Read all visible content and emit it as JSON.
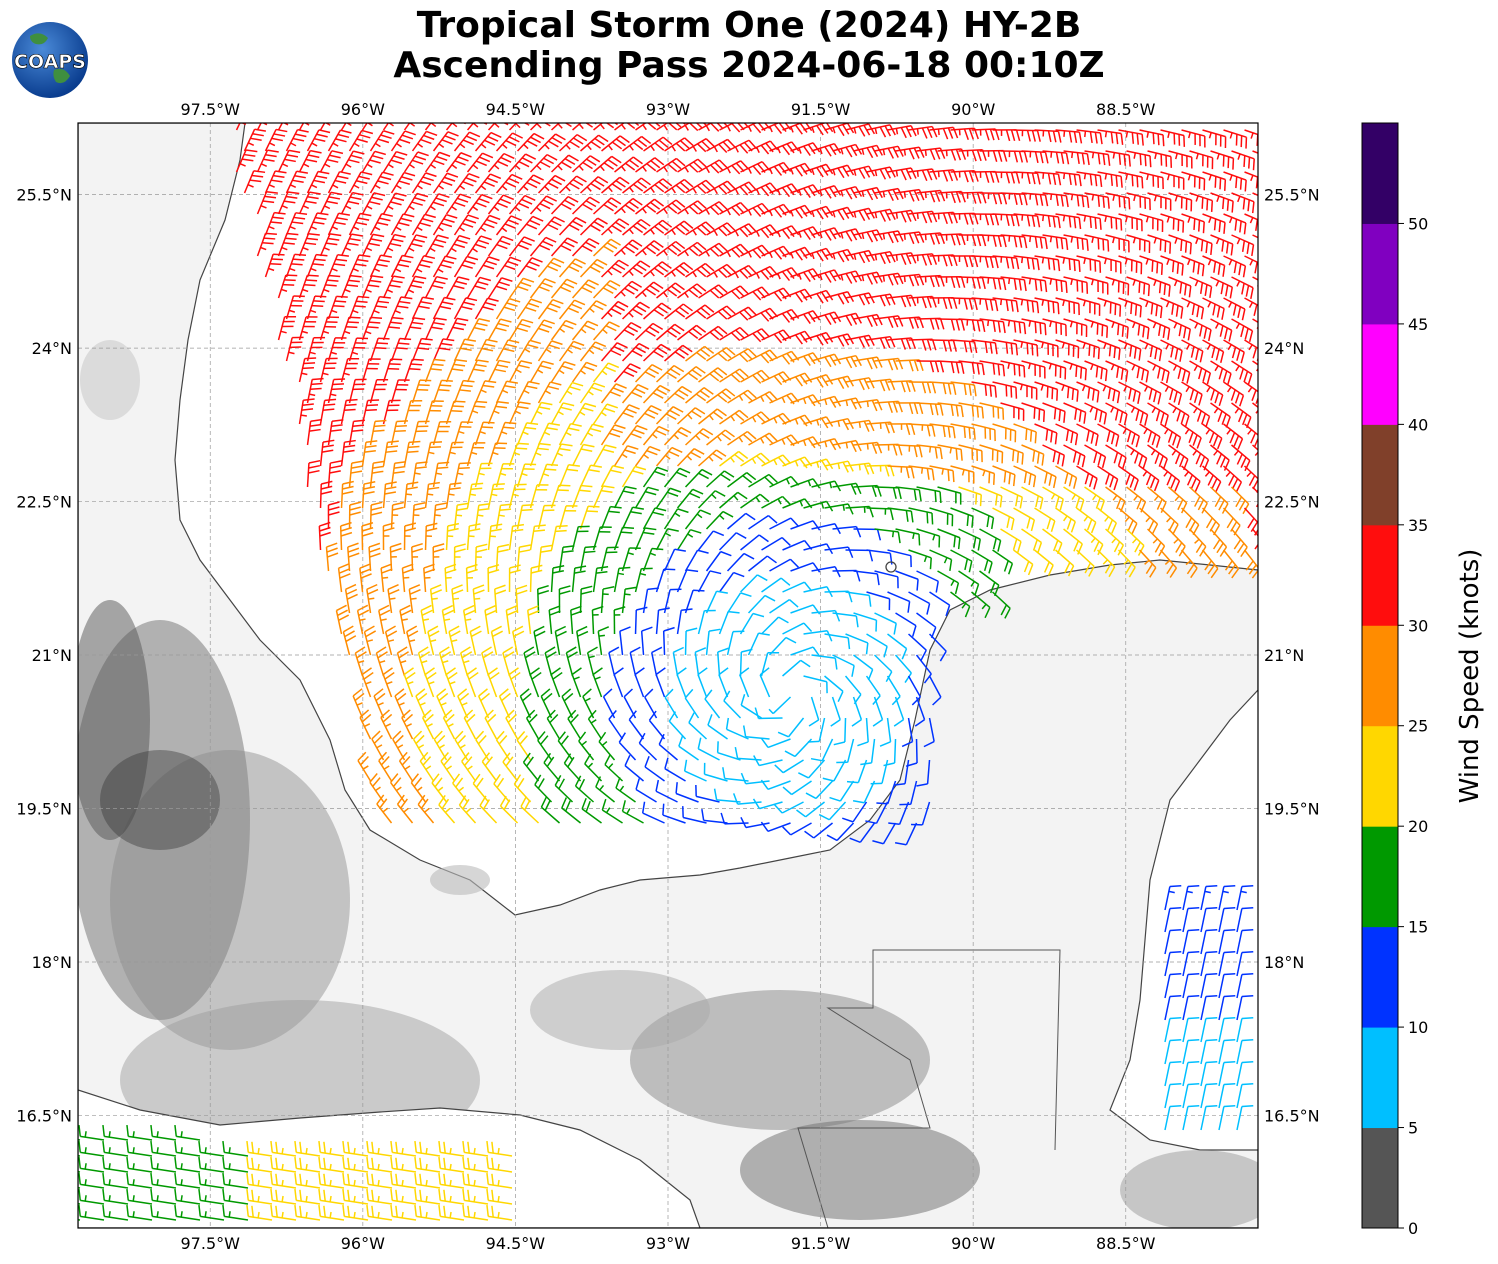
{
  "title": {
    "line1": "Tropical Storm One (2024) HY-2B",
    "line2": "Ascending Pass 2024-06-18 00:10Z"
  },
  "logo": {
    "text": "COAPS",
    "icon": "globe-logo-icon"
  },
  "chart_data": {
    "type": "wind-barb-map",
    "extent": {
      "lon": [
        -98.8,
        -87.2
      ],
      "lat": [
        15.4,
        26.2
      ]
    },
    "lon_ticks": [
      "97.5°W",
      "96°W",
      "94.5°W",
      "93°W",
      "91.5°W",
      "90°W",
      "88.5°W"
    ],
    "lon_values": [
      -97.5,
      -96,
      -94.5,
      -93,
      -91.5,
      -90,
      -88.5
    ],
    "lat_ticks": [
      "25.5°N",
      "24°N",
      "22.5°N",
      "21°N",
      "19.5°N",
      "18°N",
      "16.5°N"
    ],
    "lat_values": [
      25.5,
      24,
      22.5,
      21,
      19.5,
      18,
      16.5
    ],
    "grid": true,
    "storm_center": {
      "lon": -91.8,
      "lat": 20.6
    },
    "colorbar": {
      "label": "Wind Speed (knots)",
      "ticks": [
        "0",
        "5",
        "10",
        "15",
        "20",
        "25",
        "30",
        "35",
        "40",
        "45",
        "50"
      ],
      "bins": [
        {
          "min": 0,
          "max": 5,
          "color": "#555555"
        },
        {
          "min": 5,
          "max": 10,
          "color": "#00bfff"
        },
        {
          "min": 10,
          "max": 15,
          "color": "#0033ff"
        },
        {
          "min": 15,
          "max": 20,
          "color": "#009900"
        },
        {
          "min": 20,
          "max": 25,
          "color": "#ffd700"
        },
        {
          "min": 25,
          "max": 30,
          "color": "#ff8c00"
        },
        {
          "min": 30,
          "max": 35,
          "color": "#ff0d0d"
        },
        {
          "min": 35,
          "max": 40,
          "color": "#80402a"
        },
        {
          "min": 40,
          "max": 45,
          "color": "#ff00ff"
        },
        {
          "min": 45,
          "max": 50,
          "color": "#8000c0"
        },
        {
          "min": 50,
          "max": 55,
          "color": "#330066"
        }
      ]
    }
  }
}
